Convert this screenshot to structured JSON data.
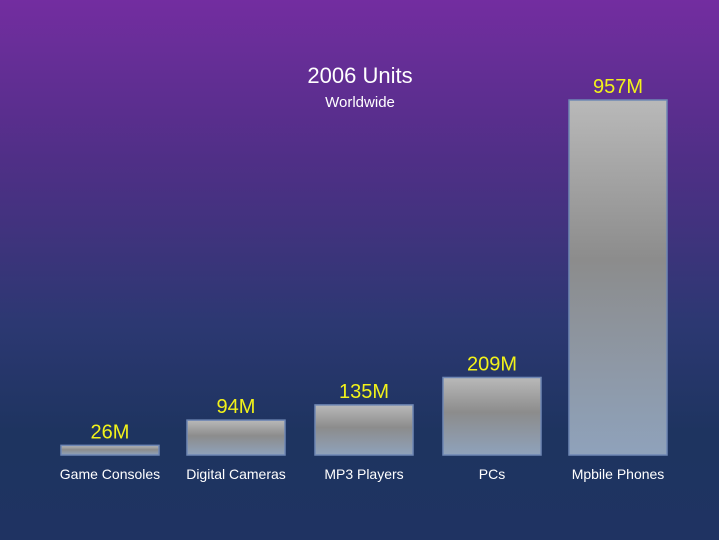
{
  "chart_data": {
    "type": "bar",
    "title": "2006 Units",
    "subtitle": "Worldwide",
    "categories": [
      "Game Consoles",
      "Digital Cameras",
      "MP3 Players",
      "PCs",
      "Mpbile Phones"
    ],
    "values": [
      26,
      94,
      135,
      209,
      957
    ],
    "value_labels": [
      "26M",
      "94M",
      "135M",
      "209M",
      "957M"
    ],
    "unit": "M",
    "ylim": [
      0,
      957
    ],
    "grid": false,
    "legend": "none",
    "colors": {
      "bar_light": "#b9b9b9",
      "bar_dark": "#8c8c8c",
      "bar_bottom": "#8fa2bb",
      "bar_stroke": "#6f87b4",
      "value_label": "#f2f21a",
      "text": "#ffffff"
    }
  }
}
